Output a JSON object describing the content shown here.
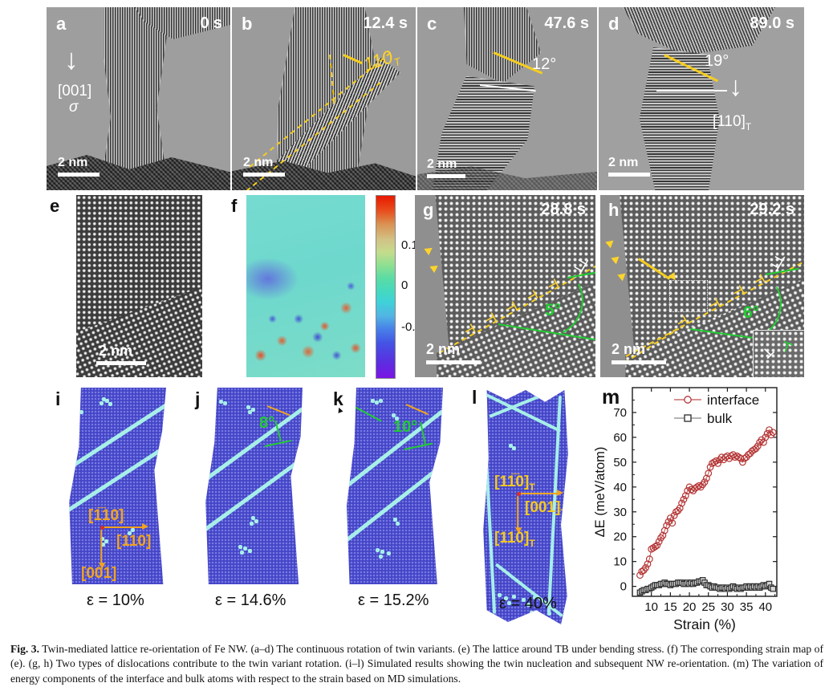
{
  "caption": {
    "label": "Fig. 3.",
    "text": "Twin-mediated lattice re-orientation of Fe NW. (a–d) The continuous rotation of twin variants. (e) The lattice around TB under bending stress. (f) The corresponding strain map of (e). (g, h) Two types of dislocations contribute to the twin variant rotation. (i–l) Simulated results showing the twin nucleation and subsequent NW re-orientation. (m) The variation of energy components of the interface and bulk atoms with respect to the strain based on MD simulations."
  },
  "symbols": {
    "dislocation": "⊥",
    "dislocation_up": "⊤",
    "down_arrow": "↓"
  },
  "panels": {
    "a": {
      "label": "a",
      "time": "0 s",
      "scale_bar": "2 nm",
      "loading_direction": "[001]",
      "stress_symbol": "σ"
    },
    "b": {
      "label": "b",
      "time": "12.4 s",
      "scale_bar": "2 nm",
      "twin_plane": "110",
      "twin_plane_sub": "T"
    },
    "c": {
      "label": "c",
      "time": "47.6 s",
      "scale_bar": "2 nm",
      "rotation_angle": "12°"
    },
    "d": {
      "label": "d",
      "time": "89.0 s",
      "scale_bar": "2 nm",
      "rotation_angle": "19°",
      "direction": "[110]",
      "direction_sub": "T"
    },
    "e": {
      "label": "e",
      "scale_bar": "2 nm"
    },
    "f": {
      "label": "f",
      "colorbar_ticks": [
        "0.1",
        "0",
        "-0.1"
      ]
    },
    "g": {
      "label": "g",
      "time": "28.8 s",
      "scale_bar": "2 nm",
      "tilt_angle": "5°"
    },
    "h": {
      "label": "h",
      "time": "29.2 s",
      "scale_bar": "2 nm",
      "tilt_angle": "6°"
    },
    "i": {
      "label": "i",
      "strain": "ε = 10%",
      "axis_up": "[1̅10]",
      "axis_right": "[110]",
      "axis_down": "[001]"
    },
    "j": {
      "label": "j",
      "strain": "ε = 14.6%",
      "tilt_angle": "8°"
    },
    "k": {
      "label": "k",
      "strain": "ε = 15.2%",
      "tilt_angle": "10°"
    },
    "l": {
      "label": "l",
      "strain": "ε = 40%",
      "axis_up": "[11̅0]",
      "axis_up_sub": "T",
      "axis_right": "[001]",
      "axis_right_sub": "T",
      "axis_down": "[110]",
      "axis_down_sub": "T"
    },
    "m": {
      "label": "m"
    }
  },
  "chart_data": {
    "type": "scatter",
    "xlabel": "Strain (%)",
    "ylabel": "ΔE (meV/atom)",
    "xlim": [
      5,
      43
    ],
    "ylim": [
      -4,
      80
    ],
    "x_ticks": [
      10,
      15,
      20,
      25,
      30,
      35,
      40
    ],
    "y_ticks": [
      0,
      10,
      20,
      30,
      40,
      50,
      60,
      70
    ],
    "grid": false,
    "legend_position": "top-right",
    "series": [
      {
        "name": "interface",
        "marker": "circle",
        "color": "#b43434",
        "points": [
          [
            7,
            4.5
          ],
          [
            7.5,
            6
          ],
          [
            8,
            6.5
          ],
          [
            8.5,
            7.5
          ],
          [
            9,
            9
          ],
          [
            9.5,
            11
          ],
          [
            10,
            15
          ],
          [
            10.5,
            15.5
          ],
          [
            11,
            16
          ],
          [
            11.5,
            16.5
          ],
          [
            12,
            18
          ],
          [
            12.5,
            19.5
          ],
          [
            13,
            20.5
          ],
          [
            13.5,
            22.5
          ],
          [
            14,
            24.5
          ],
          [
            14.5,
            26
          ],
          [
            15,
            27.5
          ],
          [
            15.5,
            25.5
          ],
          [
            16,
            28.5
          ],
          [
            16.5,
            30
          ],
          [
            17,
            30.5
          ],
          [
            17.5,
            31.5
          ],
          [
            18,
            33.5
          ],
          [
            18.5,
            35
          ],
          [
            19,
            36.5
          ],
          [
            19.5,
            38.5
          ],
          [
            20,
            40
          ],
          [
            20.5,
            39
          ],
          [
            21,
            38.5
          ],
          [
            21.5,
            39.5
          ],
          [
            22,
            40
          ],
          [
            22.5,
            40.5
          ],
          [
            23,
            40
          ],
          [
            23.5,
            41
          ],
          [
            24,
            42
          ],
          [
            24.5,
            43.5
          ],
          [
            25,
            45.5
          ],
          [
            25.5,
            48
          ],
          [
            26,
            49.5
          ],
          [
            26.5,
            50
          ],
          [
            27,
            50.5
          ],
          [
            27.5,
            49.5
          ],
          [
            28,
            51
          ],
          [
            28.5,
            52
          ],
          [
            29,
            51
          ],
          [
            29.5,
            52
          ],
          [
            30,
            52.5
          ],
          [
            30.5,
            51.5
          ],
          [
            31,
            52.5
          ],
          [
            31.5,
            53
          ],
          [
            32,
            52
          ],
          [
            32.5,
            52.5
          ],
          [
            33,
            52
          ],
          [
            33.5,
            51.5
          ],
          [
            34,
            50
          ],
          [
            34.5,
            51.5
          ],
          [
            35,
            52
          ],
          [
            35.5,
            53
          ],
          [
            36,
            53.5
          ],
          [
            36.5,
            54.5
          ],
          [
            37,
            55
          ],
          [
            37.5,
            55.5
          ],
          [
            38,
            56.5
          ],
          [
            38.5,
            58
          ],
          [
            39,
            59
          ],
          [
            39.5,
            58
          ],
          [
            40,
            60
          ],
          [
            40.5,
            61.5
          ],
          [
            41,
            63
          ],
          [
            41.5,
            61
          ],
          [
            42,
            62
          ]
        ]
      },
      {
        "name": "bulk",
        "marker": "square",
        "color": "#2a2a2a",
        "points": [
          [
            7,
            -2.5
          ],
          [
            7.5,
            -2
          ],
          [
            8,
            -1.5
          ],
          [
            8.5,
            -1.5
          ],
          [
            9,
            -1
          ],
          [
            9.5,
            -1
          ],
          [
            10,
            -0.5
          ],
          [
            10.5,
            0
          ],
          [
            11,
            0.5
          ],
          [
            11.5,
            0.5
          ],
          [
            12,
            0.5
          ],
          [
            12.5,
            1
          ],
          [
            13,
            1
          ],
          [
            13.5,
            1.5
          ],
          [
            14,
            1
          ],
          [
            14.5,
            1
          ],
          [
            15,
            0.5
          ],
          [
            15.5,
            1
          ],
          [
            16,
            1
          ],
          [
            16.5,
            1
          ],
          [
            17,
            1.5
          ],
          [
            17.5,
            1.5
          ],
          [
            18,
            1.5
          ],
          [
            18.5,
            1
          ],
          [
            19,
            1
          ],
          [
            19.5,
            1.5
          ],
          [
            20,
            1
          ],
          [
            20.5,
            1.5
          ],
          [
            21,
            1
          ],
          [
            21.5,
            1.5
          ],
          [
            22,
            1.5
          ],
          [
            22.5,
            2
          ],
          [
            23,
            2
          ],
          [
            23.5,
            2.5
          ],
          [
            24,
            1.5
          ],
          [
            24.5,
            0.5
          ],
          [
            25,
            0.5
          ],
          [
            25.5,
            0
          ],
          [
            26,
            -0.5
          ],
          [
            26.5,
            0
          ],
          [
            27,
            -0.5
          ],
          [
            27.5,
            -0.5
          ],
          [
            28,
            -1
          ],
          [
            28.5,
            -0.5
          ],
          [
            29,
            -0.5
          ],
          [
            29.5,
            -1
          ],
          [
            30,
            -0.5
          ],
          [
            30.5,
            -1
          ],
          [
            31,
            -0.5
          ],
          [
            31.5,
            0
          ],
          [
            32,
            -0.5
          ],
          [
            32.5,
            -1
          ],
          [
            33,
            -0.5
          ],
          [
            33.5,
            -1
          ],
          [
            34,
            -0.5
          ],
          [
            34.5,
            -0.5
          ],
          [
            35,
            0
          ],
          [
            35.5,
            -0.5
          ],
          [
            36,
            0
          ],
          [
            36.5,
            -0.5
          ],
          [
            37,
            0
          ],
          [
            37.5,
            -0.5
          ],
          [
            38,
            0
          ],
          [
            38.5,
            -0.5
          ],
          [
            39,
            0
          ],
          [
            39.5,
            0.5
          ],
          [
            40,
            0
          ],
          [
            40.5,
            0.5
          ],
          [
            41,
            1
          ],
          [
            41.5,
            -0.5
          ],
          [
            42,
            -1
          ]
        ]
      }
    ]
  }
}
